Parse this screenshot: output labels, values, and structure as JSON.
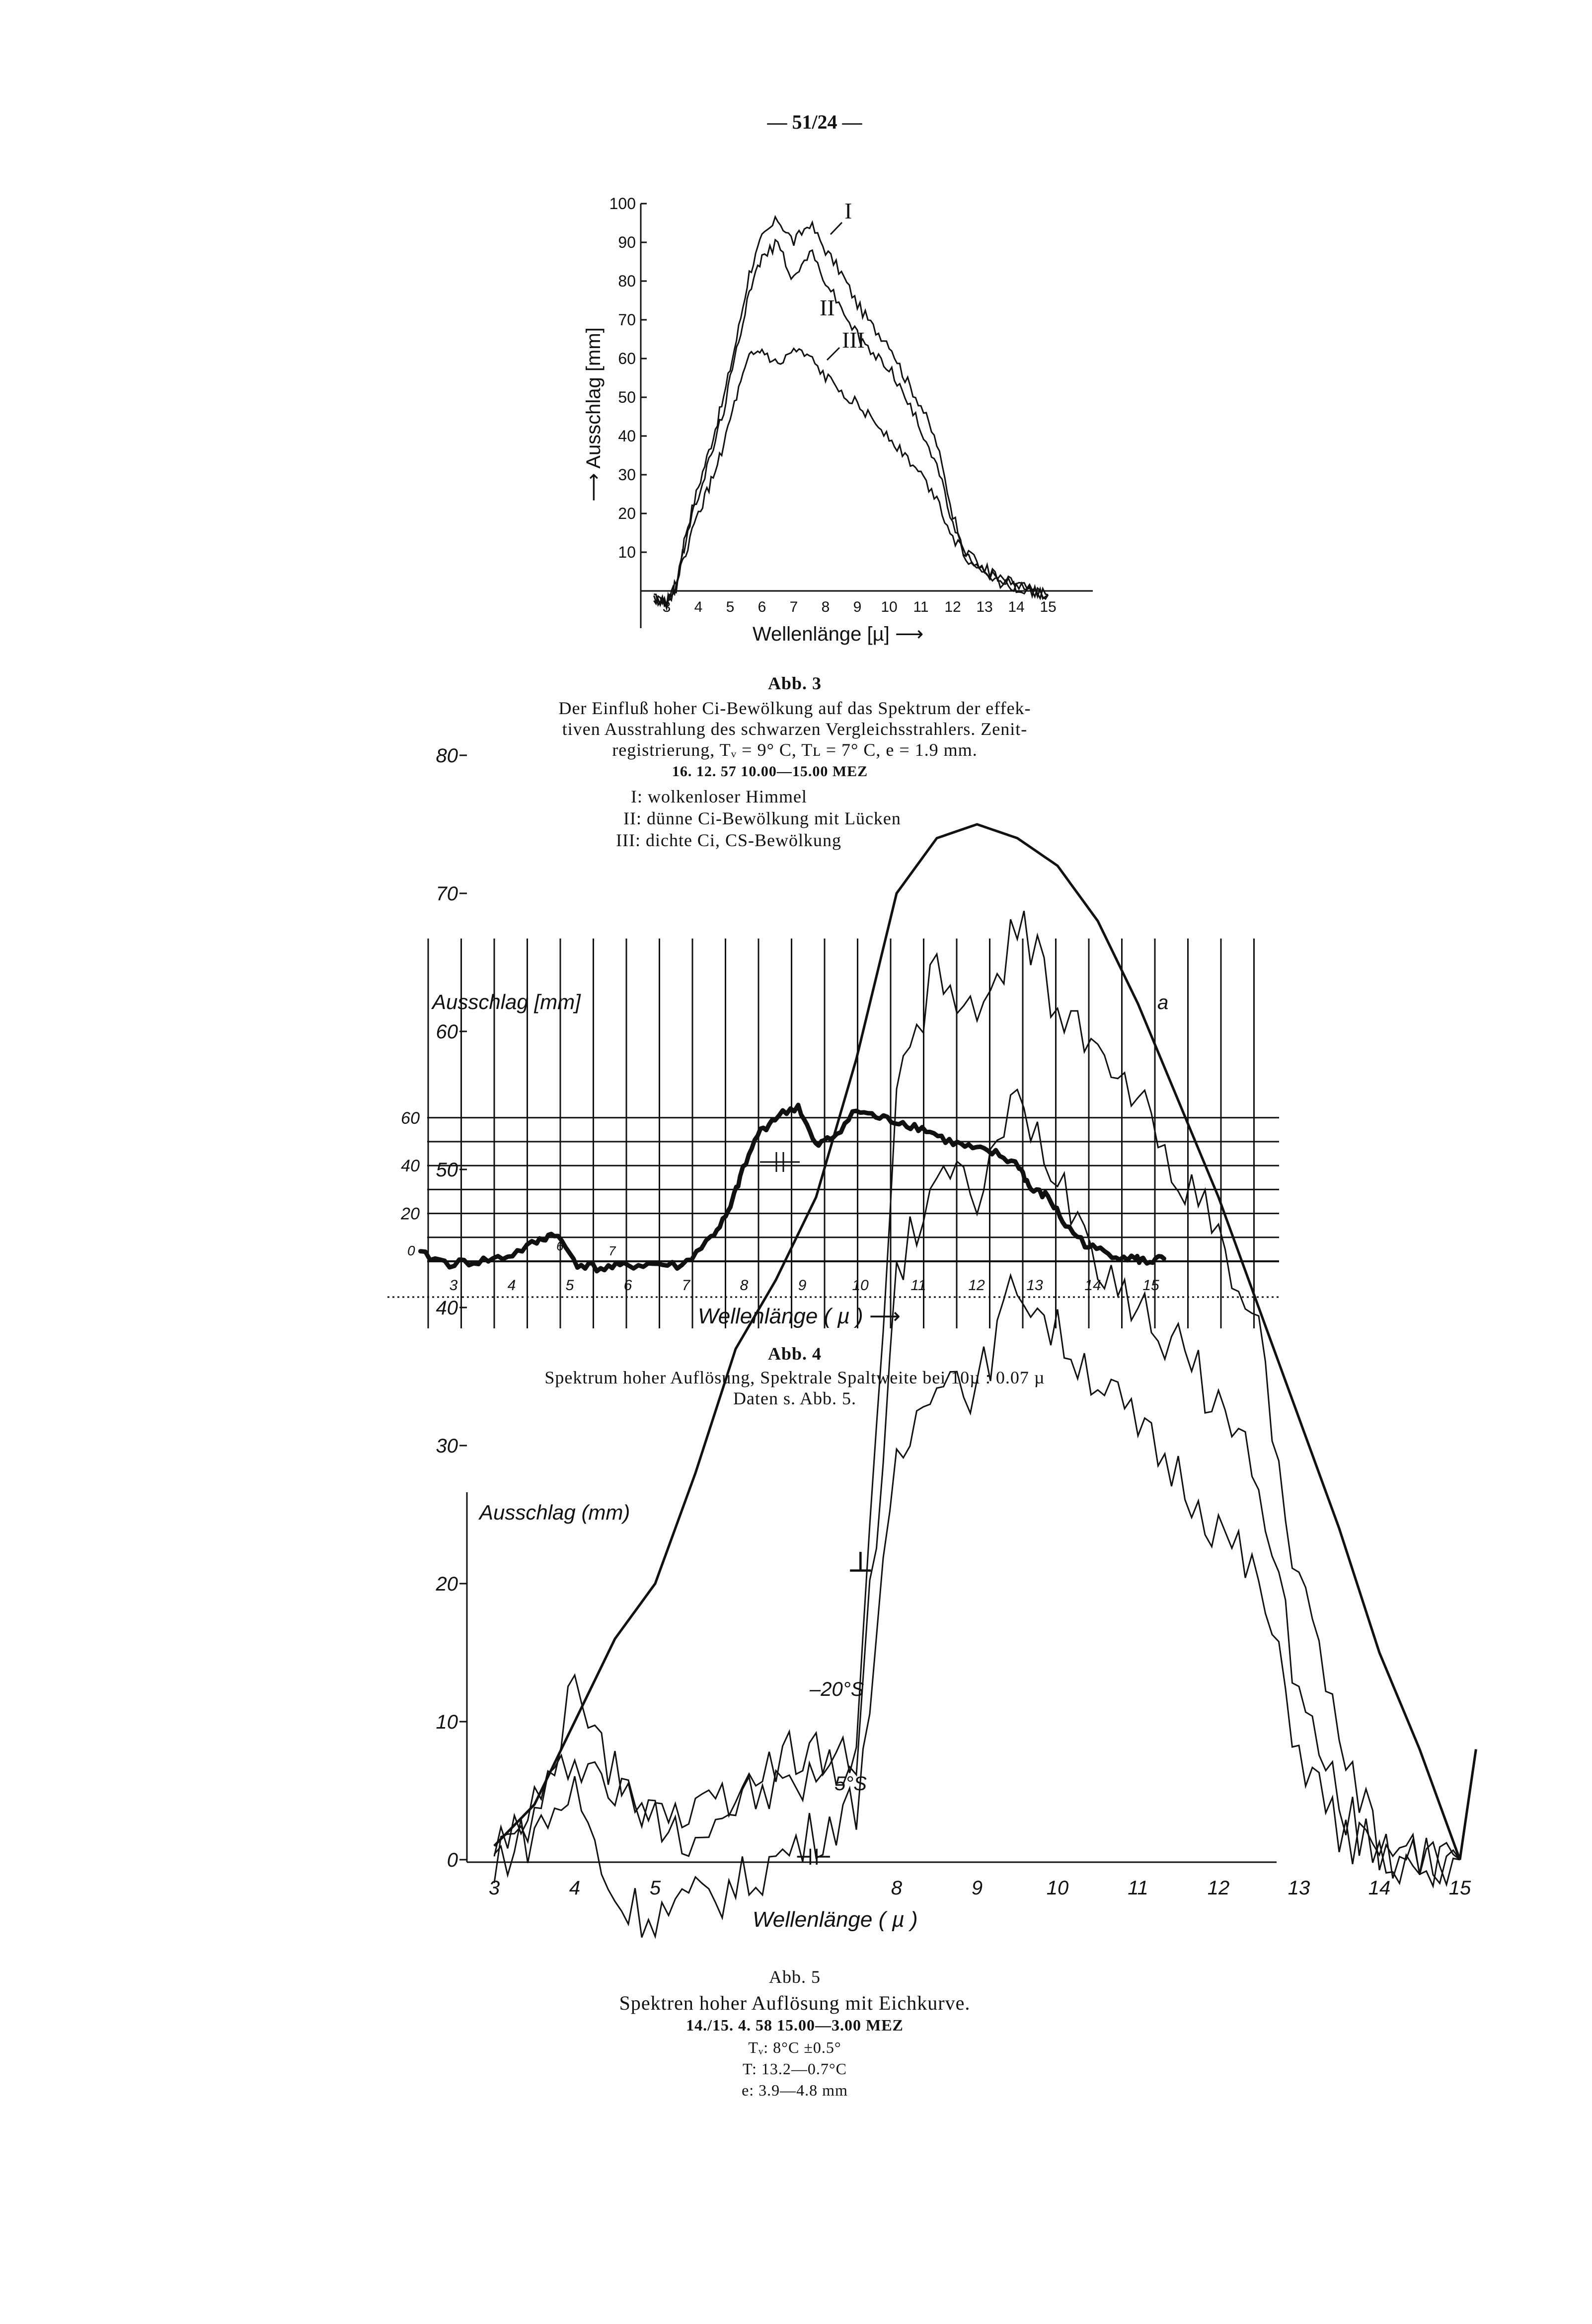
{
  "page_number": "— 51/24 —",
  "figures": [
    {
      "caption": {
        "title": "Abb. 3",
        "line1": "Der Einfluß hoher Ci-Bewölkung auf das Spektrum der effek-",
        "line2": "tiven Ausstrahlung des schwarzen Vergleichsstrahlers. Zenit-",
        "line3": "registrierung, Tᵥ = 9° C, Tʟ = 7° C, e = 1.9 mm.",
        "meta": "16. 12. 57          10.00—15.00 MEZ",
        "legend": [
          "I: wolkenloser Himmel",
          "II: dünne Ci-Bewölkung mit Lücken",
          "III: dichte Ci, CS-Bewölkung"
        ]
      }
    },
    {
      "caption": {
        "title": "Abb. 4",
        "line1": "Spektrum hoher Auflösung, Spektrale Spaltweite bei 10µ : 0.07 µ",
        "line2": "Daten s. Abb. 5."
      },
      "annotations": {
        "corner": "a",
        "zero": "0",
        "small6": "6",
        "small7": "7"
      }
    },
    {
      "caption": {
        "title": "Abb. 5",
        "line1": "Spektren hoher Auflösung mit Eichkurve.",
        "line2": "14./15. 4. 58       15.00—3.00 MEZ",
        "line3": "Tᵥ: 8°C ±0.5°",
        "line4": "T: 13.2—0.7°C",
        "line5": "e: 3.9—4.8 mm"
      }
    }
  ],
  "chart_data": [
    {
      "type": "line",
      "xlabel": "Wellenlänge [µ] ⟶",
      "ylabel": "⟶ Ausschlag [mm]",
      "ylim": [
        -5,
        100
      ],
      "yticks": [
        "100",
        "90",
        "80",
        "70",
        "60",
        "50",
        "40",
        "30",
        "20",
        "10"
      ],
      "xticks": [
        "3",
        "4",
        "5",
        "6",
        "7",
        "8",
        "9",
        "10",
        "11",
        "12",
        "13",
        "14",
        "15"
      ],
      "series": [
        {
          "name": "I",
          "x": [
            2.6,
            3.0,
            3.3,
            3.6,
            4.0,
            4.4,
            4.8,
            5.2,
            5.6,
            6.0,
            6.5,
            7.0,
            7.5,
            8.0,
            8.5,
            9.0,
            9.5,
            10.0,
            10.5,
            11.0,
            11.5,
            12.0,
            12.5,
            13.0,
            13.5,
            14.0,
            14.5,
            15.0
          ],
          "y": [
            -2,
            -3,
            2,
            15,
            27,
            38,
            50,
            65,
            82,
            91,
            96,
            90,
            95,
            88,
            82,
            74,
            68,
            64,
            55,
            48,
            38,
            20,
            8,
            5,
            3,
            2,
            0,
            -1
          ]
        },
        {
          "name": "II",
          "x": [
            2.6,
            3.0,
            3.3,
            3.6,
            4.0,
            4.4,
            4.8,
            5.2,
            5.6,
            6.0,
            6.5,
            7.0,
            7.5,
            8.0,
            8.5,
            9.0,
            9.5,
            10.0,
            10.5,
            11.0,
            11.5,
            12.0,
            12.5,
            13.0,
            13.5,
            14.0,
            14.5,
            15.0
          ],
          "y": [
            -2,
            -3,
            1,
            13,
            25,
            35,
            47,
            62,
            78,
            86,
            90,
            80,
            88,
            80,
            73,
            66,
            61,
            58,
            50,
            42,
            33,
            17,
            7,
            4,
            2,
            1,
            0,
            -1
          ]
        },
        {
          "name": "III",
          "x": [
            2.6,
            3.0,
            3.3,
            3.6,
            4.0,
            4.4,
            4.8,
            5.2,
            5.6,
            6.0,
            6.5,
            7.0,
            7.5,
            8.0,
            8.5,
            9.0,
            9.5,
            10.0,
            10.5,
            11.0,
            11.5,
            12.0,
            12.5,
            13.0,
            13.5,
            14.0,
            14.5,
            15.0
          ],
          "y": [
            -2,
            -3,
            1,
            10,
            20,
            28,
            38,
            50,
            60,
            62,
            58,
            62,
            60,
            55,
            52,
            48,
            44,
            40,
            35,
            30,
            24,
            14,
            9,
            6,
            3,
            1,
            0,
            -1
          ]
        }
      ]
    },
    {
      "type": "scatter",
      "xlabel": "Wellenlänge ( µ ) ⟶",
      "ylabel": "Ausschlag [mm]",
      "ylim": [
        -10,
        70
      ],
      "yticks": [
        "60",
        "40",
        "20"
      ],
      "xticks": [
        "3",
        "4",
        "5",
        "6",
        "7",
        "8",
        "9",
        "10",
        "11",
        "12",
        "13",
        "14",
        "15"
      ],
      "series": [
        {
          "name": "",
          "x": [
            2.5,
            3.0,
            3.5,
            4.0,
            4.5,
            4.8,
            5.2,
            5.6,
            6.0,
            6.5,
            7.0,
            7.5,
            7.8,
            8.0,
            8.3,
            8.6,
            9.0,
            9.3,
            9.6,
            10.0,
            10.4,
            10.8,
            11.2,
            11.6,
            12.0,
            12.4,
            12.8,
            13.0,
            13.3,
            13.6,
            14.0,
            14.4,
            14.8,
            15.0,
            15.3
          ],
          "y": [
            3,
            -1,
            0,
            2,
            8,
            12,
            -1,
            -3,
            -2,
            -1,
            -2,
            10,
            20,
            35,
            53,
            60,
            65,
            48,
            52,
            63,
            60,
            58,
            55,
            50,
            47,
            45,
            40,
            30,
            27,
            15,
            6,
            3,
            1,
            0,
            1
          ]
        }
      ]
    },
    {
      "type": "line",
      "xlabel": "Wellenlänge   ( µ )",
      "ylabel": "Ausschlag  (mm)",
      "ylim": [
        0,
        85
      ],
      "yticks": [
        "80",
        "70",
        "60",
        "50",
        "40",
        "30",
        "20",
        "10",
        "0"
      ],
      "xticks": [
        "3",
        "4",
        "5",
        "8",
        "9",
        "10",
        "11",
        "12",
        "13",
        "14",
        "15"
      ],
      "annotations": [
        "⊥",
        "–20°S",
        "5°S",
        "⊣⊢"
      ],
      "series": [
        {
          "name": "",
          "x": [
            3.0,
            3.5,
            4.0,
            4.5,
            5.0,
            5.5,
            6.0,
            6.5,
            7.0,
            7.5,
            8.0,
            8.5,
            9.0,
            9.5,
            10.0,
            10.5,
            11.0,
            11.5,
            12.0,
            12.5,
            13.0,
            13.5,
            14.0,
            14.5,
            15.0,
            15.2
          ],
          "y": [
            1,
            4,
            10,
            16,
            20,
            28,
            37,
            42,
            48,
            58,
            70,
            74,
            75,
            74,
            72,
            68,
            62,
            55,
            48,
            40,
            32,
            24,
            15,
            8,
            0,
            8
          ]
        },
        {
          "name": "",
          "x": [
            3.0,
            3.5,
            4.0,
            4.5,
            5.0,
            5.5,
            6.0,
            6.5,
            7.0,
            7.5,
            8.0,
            8.5,
            9.0,
            9.5,
            10.0,
            10.5,
            11.0,
            11.5,
            12.0,
            12.5,
            13.0,
            13.5,
            14.0,
            14.5,
            15.0
          ],
          "y": [
            0,
            4,
            12,
            6,
            4,
            3,
            5,
            7,
            8,
            8,
            55,
            65,
            60,
            68,
            62,
            58,
            55,
            50,
            45,
            38,
            20,
            8,
            1,
            0,
            0
          ]
        },
        {
          "name": "–20°S",
          "x": [
            3.0,
            3.5,
            4.0,
            4.5,
            5.0,
            5.5,
            6.0,
            6.5,
            7.0,
            7.5,
            8.0,
            8.5,
            9.0,
            9.5,
            10.0,
            10.5,
            11.0,
            11.5,
            12.0,
            12.5,
            13.0,
            13.5,
            14.0,
            14.5,
            15.0
          ],
          "y": [
            0,
            3,
            8,
            5,
            3,
            2,
            4,
            5,
            6,
            7,
            42,
            50,
            48,
            55,
            50,
            44,
            40,
            37,
            33,
            28,
            12,
            4,
            0,
            0,
            0
          ]
        },
        {
          "name": "5°S",
          "x": [
            3.0,
            3.5,
            4.0,
            4.5,
            5.0,
            5.5,
            6.0,
            6.5,
            7.0,
            7.5,
            8.0,
            8.5,
            9.0,
            9.5,
            10.0,
            10.5,
            11.0,
            11.5,
            12.0,
            12.5,
            13.0,
            13.5,
            14.0,
            14.5,
            15.0
          ],
          "y": [
            0,
            2,
            5,
            -3,
            -4,
            -3,
            -2,
            0,
            2,
            4,
            28,
            36,
            34,
            42,
            38,
            35,
            31,
            28,
            24,
            20,
            8,
            2,
            0,
            0,
            0
          ]
        }
      ]
    }
  ]
}
